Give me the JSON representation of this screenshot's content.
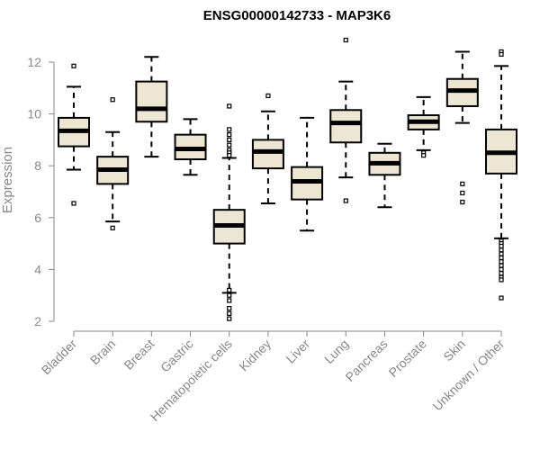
{
  "chart_data": {
    "type": "boxplot",
    "title": "ENSG00000142733 - MAP3K6",
    "ylabel": "Expression",
    "ylim": [
      2,
      12
    ],
    "yticks": [
      2,
      4,
      6,
      8,
      10,
      12
    ],
    "colors": {
      "box_fill": "#ede6d3",
      "stroke": "#000000",
      "axis": "#888888"
    },
    "categories": [
      "Bladder",
      "Brain",
      "Breast",
      "Gastric",
      "Hematopoietic cells",
      "Kidney",
      "Liver",
      "Lung",
      "Pancreas",
      "Prostate",
      "Skin",
      "Unknown / Other"
    ],
    "boxes": [
      {
        "label": "Bladder",
        "whisker_low": 7.85,
        "q1": 8.75,
        "median": 9.35,
        "q3": 9.85,
        "whisker_high": 11.05,
        "outliers": [
          11.85,
          6.55
        ]
      },
      {
        "label": "Brain",
        "whisker_low": 5.85,
        "q1": 7.3,
        "median": 7.85,
        "q3": 8.35,
        "whisker_high": 9.3,
        "outliers": [
          10.55,
          5.6
        ]
      },
      {
        "label": "Breast",
        "whisker_low": 8.35,
        "q1": 9.7,
        "median": 10.2,
        "q3": 11.25,
        "whisker_high": 12.2,
        "outliers": []
      },
      {
        "label": "Gastric",
        "whisker_low": 7.65,
        "q1": 8.25,
        "median": 8.65,
        "q3": 9.2,
        "whisker_high": 9.8,
        "outliers": []
      },
      {
        "label": "Hematopoietic cells",
        "whisker_low": 3.1,
        "q1": 5.0,
        "median": 5.7,
        "q3": 6.3,
        "whisker_high": 8.3,
        "outliers": [
          10.3,
          9.4,
          9.2,
          9.0,
          8.8,
          8.6,
          8.5,
          8.4,
          3.2,
          3.0,
          2.8,
          2.5,
          2.3,
          2.1
        ]
      },
      {
        "label": "Kidney",
        "whisker_low": 6.55,
        "q1": 7.9,
        "median": 8.55,
        "q3": 9.0,
        "whisker_high": 10.1,
        "outliers": [
          10.7
        ]
      },
      {
        "label": "Liver",
        "whisker_low": 5.5,
        "q1": 6.7,
        "median": 7.4,
        "q3": 7.95,
        "whisker_high": 9.85,
        "outliers": []
      },
      {
        "label": "Lung",
        "whisker_low": 7.55,
        "q1": 8.9,
        "median": 9.65,
        "q3": 10.15,
        "whisker_high": 11.25,
        "outliers": [
          12.85,
          6.65
        ]
      },
      {
        "label": "Pancreas",
        "whisker_low": 6.4,
        "q1": 7.65,
        "median": 8.1,
        "q3": 8.5,
        "whisker_high": 8.85,
        "outliers": []
      },
      {
        "label": "Prostate",
        "whisker_low": 8.6,
        "q1": 9.4,
        "median": 9.7,
        "q3": 9.95,
        "whisker_high": 10.65,
        "outliers": [
          8.5,
          8.4
        ]
      },
      {
        "label": "Skin",
        "whisker_low": 9.65,
        "q1": 10.3,
        "median": 10.9,
        "q3": 11.35,
        "whisker_high": 12.4,
        "outliers": [
          7.3,
          6.95,
          6.6
        ]
      },
      {
        "label": "Unknown / Other",
        "whisker_low": 5.2,
        "q1": 7.7,
        "median": 8.5,
        "q3": 9.4,
        "whisker_high": 11.85,
        "outliers": [
          12.4,
          12.3,
          5.1,
          5.0,
          4.9,
          4.75,
          4.6,
          4.45,
          4.3,
          4.15,
          4.0,
          3.85,
          3.7,
          3.6,
          2.9
        ]
      }
    ]
  }
}
